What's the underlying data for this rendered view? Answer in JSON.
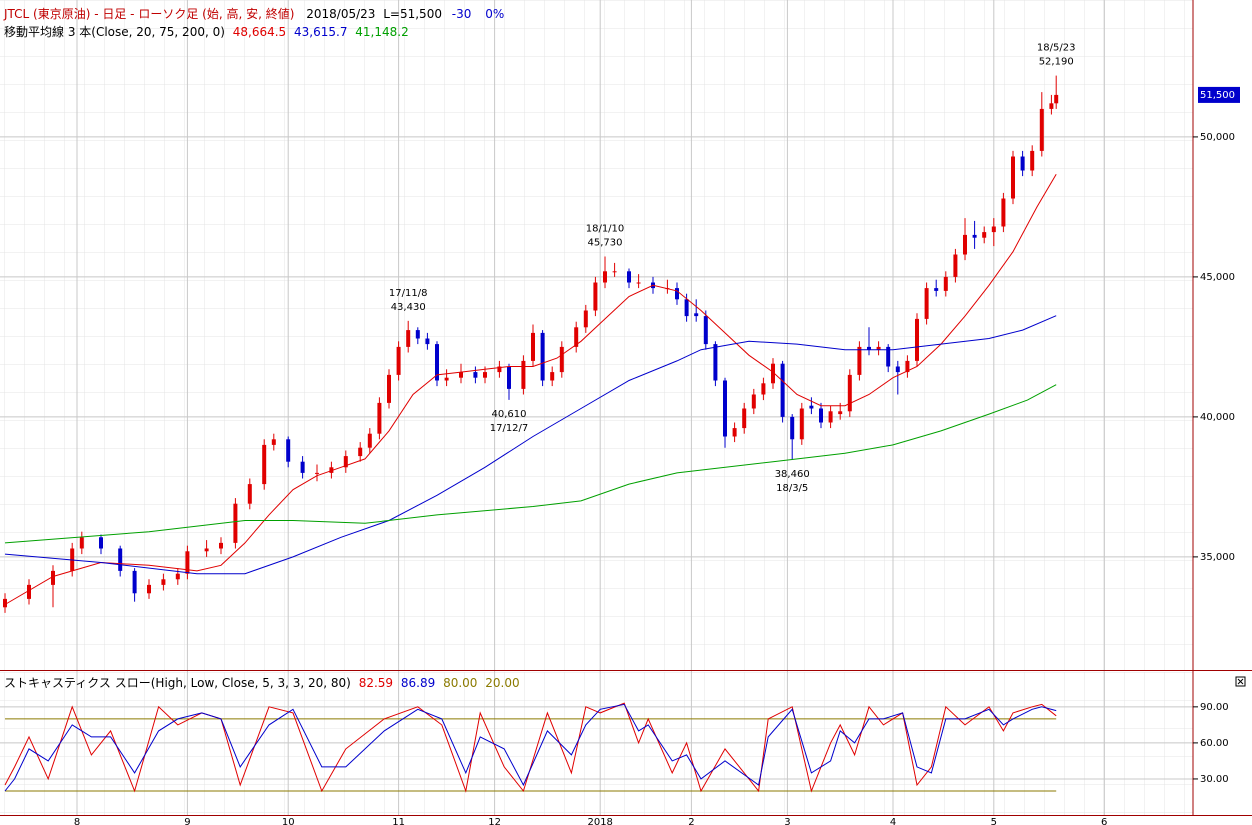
{
  "chart_data": [
    {
      "type": "candlestick",
      "title": "JTCL (東京原油) - 日足 - ローソク足 (始, 高, 安, 終値)",
      "subtitle": [
        "2018/05/23",
        "L=51,500",
        "-30",
        "0%"
      ],
      "indicator_title": "移動平均線 3 本(Close, 20, 75, 200, 0)",
      "up_color": "#e00000",
      "down_color": "#0000cc",
      "grid": true,
      "xlim": [
        0,
        247
      ],
      "ylim": [
        30960,
        54890
      ],
      "xticks": [
        {
          "value": 15,
          "label": "8"
        },
        {
          "value": 38,
          "label": "9"
        },
        {
          "value": 59,
          "label": "10"
        },
        {
          "value": 82,
          "label": "11"
        },
        {
          "value": 102,
          "label": "12"
        },
        {
          "value": 124,
          "label": "2018"
        },
        {
          "value": 143,
          "label": "2"
        },
        {
          "value": 163,
          "label": "3"
        },
        {
          "value": 185,
          "label": "4"
        },
        {
          "value": 206,
          "label": "5"
        },
        {
          "value": 229,
          "label": "6"
        }
      ],
      "yticks": [
        {
          "value": 35000,
          "label": "35,000"
        },
        {
          "value": 40000,
          "label": "40,000"
        },
        {
          "value": 45000,
          "label": "45,000"
        },
        {
          "value": 50000,
          "label": "50,000"
        }
      ],
      "x": [
        0,
        5,
        10,
        14,
        16,
        20,
        24,
        27,
        30,
        33,
        36,
        38,
        42,
        45,
        48,
        51,
        54,
        56,
        59,
        62,
        65,
        68,
        71,
        74,
        76,
        78,
        80,
        82,
        84,
        86,
        88,
        90,
        92,
        95,
        98,
        100,
        103,
        105,
        108,
        110,
        112,
        114,
        116,
        119,
        121,
        123,
        125,
        127,
        130,
        132,
        135,
        138,
        140,
        142,
        144,
        146,
        148,
        150,
        152,
        154,
        156,
        158,
        160,
        162,
        164,
        166,
        168,
        170,
        172,
        174,
        176,
        178,
        180,
        182,
        184,
        186,
        188,
        190,
        192,
        194,
        196,
        198,
        200,
        202,
        204,
        206,
        208,
        210,
        212,
        214,
        216,
        218,
        219
      ],
      "ohlc": [
        [
          33200,
          33700,
          33000,
          33500
        ],
        [
          33500,
          34200,
          33300,
          34000
        ],
        [
          34000,
          34700,
          33200,
          34500
        ],
        [
          34500,
          35500,
          34300,
          35300
        ],
        [
          35300,
          35900,
          35100,
          35700
        ],
        [
          35700,
          35800,
          35100,
          35300
        ],
        [
          35300,
          35400,
          34300,
          34500
        ],
        [
          34500,
          34600,
          33400,
          33700
        ],
        [
          33700,
          34200,
          33500,
          34000
        ],
        [
          34000,
          34400,
          33800,
          34200
        ],
        [
          34200,
          34600,
          34000,
          34400
        ],
        [
          34400,
          35400,
          34200,
          35200
        ],
        [
          35200,
          35600,
          35000,
          35300
        ],
        [
          35300,
          35700,
          35100,
          35500
        ],
        [
          35500,
          37100,
          35300,
          36900
        ],
        [
          36900,
          37800,
          36700,
          37600
        ],
        [
          37600,
          39200,
          37400,
          39000
        ],
        [
          39000,
          39400,
          38800,
          39200
        ],
        [
          39200,
          39300,
          38200,
          38400
        ],
        [
          38400,
          38600,
          37800,
          38000
        ],
        [
          38000,
          38300,
          37700,
          38000
        ],
        [
          38000,
          38400,
          37800,
          38200
        ],
        [
          38200,
          38800,
          38000,
          38600
        ],
        [
          38600,
          39100,
          38400,
          38900
        ],
        [
          38900,
          39600,
          38700,
          39400
        ],
        [
          39400,
          40700,
          39200,
          40500
        ],
        [
          40500,
          41700,
          40300,
          41500
        ],
        [
          41500,
          42700,
          41300,
          42500
        ],
        [
          42500,
          43430,
          42300,
          43100
        ],
        [
          43100,
          43200,
          42600,
          42800
        ],
        [
          42800,
          43000,
          42400,
          42600
        ],
        [
          42600,
          42700,
          41100,
          41300
        ],
        [
          41300,
          41700,
          41100,
          41400
        ],
        [
          41400,
          41900,
          41200,
          41600
        ],
        [
          41600,
          41800,
          41200,
          41400
        ],
        [
          41400,
          41800,
          41200,
          41600
        ],
        [
          41600,
          42000,
          41400,
          41800
        ],
        [
          41800,
          41900,
          40610,
          41000
        ],
        [
          41000,
          42200,
          40800,
          42000
        ],
        [
          42000,
          43300,
          41800,
          43000
        ],
        [
          43000,
          43100,
          41100,
          41300
        ],
        [
          41300,
          41800,
          41100,
          41600
        ],
        [
          41600,
          42700,
          41400,
          42500
        ],
        [
          42500,
          43400,
          42300,
          43200
        ],
        [
          43200,
          44000,
          43000,
          43800
        ],
        [
          43800,
          45000,
          43600,
          44800
        ],
        [
          44800,
          45730,
          44600,
          45200
        ],
        [
          45200,
          45500,
          45000,
          45200
        ],
        [
          45200,
          45300,
          44600,
          44800
        ],
        [
          44800,
          45100,
          44600,
          44800
        ],
        [
          44800,
          45000,
          44400,
          44600
        ],
        [
          44600,
          44900,
          44400,
          44600
        ],
        [
          44600,
          44800,
          44000,
          44200
        ],
        [
          44200,
          44400,
          43400,
          43600
        ],
        [
          43700,
          44200,
          43400,
          43600
        ],
        [
          43600,
          43800,
          42400,
          42600
        ],
        [
          42600,
          42700,
          41100,
          41300
        ],
        [
          41300,
          41400,
          38900,
          39300
        ],
        [
          39300,
          39800,
          39100,
          39600
        ],
        [
          39600,
          40500,
          39400,
          40300
        ],
        [
          40300,
          41000,
          40100,
          40800
        ],
        [
          40800,
          41400,
          40600,
          41200
        ],
        [
          41200,
          42100,
          41000,
          41900
        ],
        [
          41900,
          42000,
          39800,
          40000
        ],
        [
          40000,
          40100,
          38460,
          39200
        ],
        [
          39200,
          40500,
          39000,
          40300
        ],
        [
          40400,
          40700,
          40100,
          40300
        ],
        [
          40300,
          40500,
          39600,
          39800
        ],
        [
          39800,
          40400,
          39600,
          40200
        ],
        [
          40100,
          40500,
          39900,
          40200
        ],
        [
          40200,
          41700,
          40000,
          41500
        ],
        [
          41500,
          42700,
          41300,
          42500
        ],
        [
          42500,
          43200,
          42200,
          42400
        ],
        [
          42400,
          42700,
          42200,
          42500
        ],
        [
          42500,
          42600,
          41600,
          41800
        ],
        [
          41800,
          42000,
          40800,
          41600
        ],
        [
          41600,
          42200,
          41400,
          42000
        ],
        [
          42000,
          43700,
          41800,
          43500
        ],
        [
          43500,
          44800,
          43300,
          44600
        ],
        [
          44600,
          44900,
          44300,
          44500
        ],
        [
          44500,
          45200,
          44300,
          45000
        ],
        [
          45000,
          46000,
          44800,
          45800
        ],
        [
          45800,
          47100,
          45600,
          46500
        ],
        [
          46500,
          47000,
          46000,
          46400
        ],
        [
          46400,
          46800,
          46200,
          46600
        ],
        [
          46600,
          47100,
          46100,
          46800
        ],
        [
          46800,
          48000,
          46600,
          47800
        ],
        [
          47800,
          49500,
          47600,
          49300
        ],
        [
          49300,
          49500,
          48600,
          48800
        ],
        [
          48800,
          49700,
          48600,
          49500
        ],
        [
          49500,
          51600,
          49300,
          51000
        ],
        [
          51000,
          51500,
          50800,
          51200
        ],
        [
          51200,
          52190,
          51000,
          51500
        ]
      ],
      "series": [
        {
          "name": "48,664.5",
          "color": "#e00000",
          "x": [
            0,
            10,
            20,
            30,
            40,
            45,
            50,
            55,
            60,
            65,
            70,
            75,
            80,
            85,
            90,
            95,
            100,
            105,
            110,
            115,
            120,
            125,
            130,
            135,
            140,
            145,
            150,
            155,
            160,
            165,
            170,
            175,
            180,
            185,
            190,
            195,
            200,
            205,
            210,
            215,
            219
          ],
          "values": [
            33300,
            34300,
            34800,
            34700,
            34500,
            34700,
            35500,
            36500,
            37400,
            37900,
            38200,
            38500,
            39500,
            40800,
            41500,
            41600,
            41700,
            41800,
            41800,
            42100,
            42700,
            43500,
            44300,
            44700,
            44500,
            43800,
            43000,
            42200,
            41600,
            40800,
            40400,
            40400,
            40800,
            41400,
            41800,
            42600,
            43600,
            44700,
            45900,
            47500,
            48664.5
          ]
        },
        {
          "name": "43,615.7",
          "color": "#0000cc",
          "x": [
            0,
            20,
            40,
            50,
            60,
            70,
            80,
            90,
            100,
            110,
            120,
            130,
            140,
            145,
            155,
            165,
            175,
            185,
            195,
            205,
            212,
            219
          ],
          "values": [
            35100,
            34800,
            34400,
            34400,
            35000,
            35700,
            36300,
            37200,
            38200,
            39300,
            40300,
            41300,
            42000,
            42400,
            42700,
            42600,
            42400,
            42400,
            42600,
            42800,
            43100,
            43615.7
          ]
        },
        {
          "name": "41,148.2",
          "color": "#00a000",
          "x": [
            0,
            30,
            50,
            60,
            75,
            90,
            110,
            120,
            130,
            140,
            160,
            175,
            185,
            195,
            205,
            213,
            219
          ],
          "values": [
            35500,
            35900,
            36300,
            36300,
            36200,
            36500,
            36800,
            37000,
            37600,
            38000,
            38400,
            38700,
            39000,
            39500,
            40100,
            40600,
            41148.2
          ]
        }
      ],
      "annotations": [
        {
          "date": "18/5/23",
          "value": 52190,
          "label": "52,190",
          "x": 219,
          "position": "above"
        },
        {
          "date": "18/1/10",
          "value": 45730,
          "label": "45,730",
          "x": 125,
          "position": "above"
        },
        {
          "date": "17/11/8",
          "value": 43430,
          "label": "43,430",
          "x": 84,
          "position": "above"
        },
        {
          "date": "17/12/7",
          "value": 40610,
          "label": "40,610",
          "x": 105,
          "position": "below"
        },
        {
          "date": "18/3/5",
          "value": 38460,
          "label": "38,460",
          "x": 164,
          "position": "below"
        }
      ],
      "last_price": {
        "value": 51500,
        "label": "51,500"
      }
    },
    {
      "type": "line",
      "title": "ストキャスティクス スロー(High, Low, Close, 5, 3, 3, 20, 80)",
      "xlim": [
        0,
        247
      ],
      "ylim": [
        0,
        119
      ],
      "yticks": [
        {
          "value": 30,
          "label": "30.00"
        },
        {
          "value": 60,
          "label": "60.00"
        },
        {
          "value": 90,
          "label": "90.00"
        }
      ],
      "reference_color": "#8b7a00",
      "reference_lines": [
        {
          "value": 80,
          "label": "80.00"
        },
        {
          "value": 20,
          "label": "20.00"
        }
      ],
      "series": [
        {
          "name": "82.59",
          "color": "#e00000",
          "x": [
            0,
            2,
            5,
            9,
            14,
            18,
            22,
            27,
            32,
            36,
            41,
            45,
            49,
            55,
            60,
            66,
            71,
            79,
            86,
            91,
            96,
            99,
            104,
            108,
            113,
            118,
            121,
            124,
            129,
            132,
            134,
            139,
            142,
            145,
            150,
            157,
            159,
            164,
            168,
            172,
            174,
            177,
            180,
            183,
            187,
            190,
            193,
            196,
            200,
            205,
            208,
            210,
            214,
            216,
            219
          ],
          "values": [
            25,
            40,
            65,
            30,
            90,
            50,
            70,
            20,
            90,
            75,
            85,
            80,
            25,
            90,
            85,
            20,
            55,
            80,
            90,
            75,
            20,
            85,
            40,
            20,
            85,
            35,
            90,
            85,
            93,
            60,
            80,
            35,
            60,
            20,
            55,
            20,
            80,
            90,
            20,
            60,
            75,
            50,
            90,
            75,
            85,
            25,
            40,
            90,
            75,
            90,
            70,
            85,
            90,
            92,
            82.59
          ]
        },
        {
          "name": "86.89",
          "color": "#0000cc",
          "x": [
            0,
            2,
            5,
            9,
            14,
            18,
            22,
            27,
            32,
            36,
            41,
            45,
            49,
            55,
            60,
            66,
            71,
            79,
            86,
            91,
            96,
            99,
            104,
            108,
            113,
            118,
            121,
            124,
            129,
            132,
            134,
            139,
            142,
            145,
            150,
            157,
            159,
            164,
            168,
            172,
            174,
            177,
            180,
            183,
            187,
            190,
            193,
            196,
            200,
            205,
            208,
            210,
            214,
            216,
            219
          ],
          "values": [
            20,
            30,
            55,
            45,
            75,
            65,
            65,
            35,
            70,
            80,
            85,
            80,
            40,
            75,
            88,
            40,
            40,
            70,
            88,
            80,
            35,
            65,
            55,
            25,
            70,
            50,
            75,
            88,
            92,
            70,
            75,
            45,
            50,
            30,
            45,
            25,
            65,
            88,
            35,
            45,
            70,
            60,
            80,
            80,
            85,
            40,
            35,
            80,
            80,
            88,
            75,
            80,
            88,
            90,
            86.89
          ]
        }
      ]
    }
  ]
}
